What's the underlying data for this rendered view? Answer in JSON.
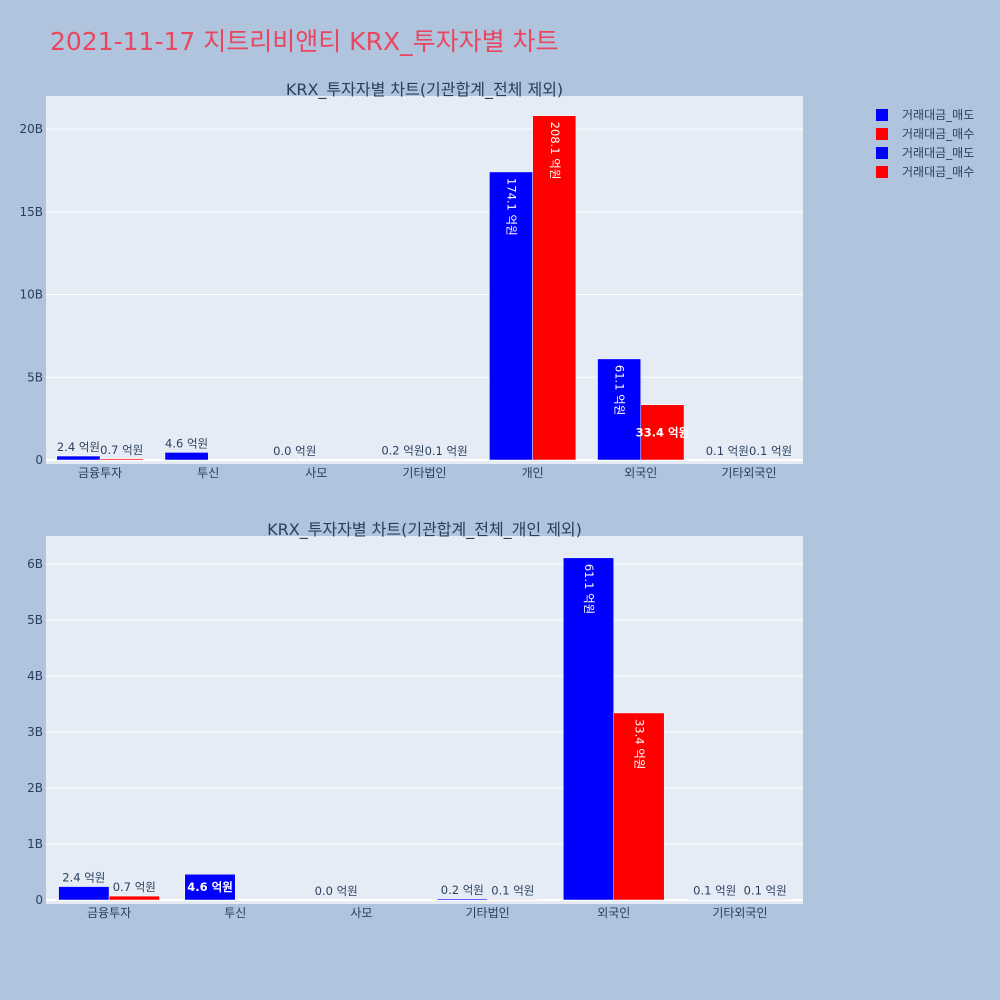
{
  "page": {
    "title": "2021-11-17 지트리비앤티 KRX_투자자별 차트"
  },
  "colors": {
    "sell": "#0000ff",
    "buy": "#ff0000",
    "plot_bg": "#e5ecf6",
    "page_bg": "#b0c4de",
    "title": "#e8475f"
  },
  "legend": {
    "placement": "top-right",
    "entries": [
      {
        "name": "거래대금_매도",
        "color": "#0000ff"
      },
      {
        "name": "거래대금_매수",
        "color": "#ff0000"
      },
      {
        "name": "거래대금_매도",
        "color": "#0000ff"
      },
      {
        "name": "거래대금_매수",
        "color": "#ff0000"
      }
    ]
  },
  "chart_data": [
    {
      "type": "bar",
      "title": "KRX_투자자별 차트(기관합계_전체 제외)",
      "categories": [
        "금융투자",
        "투신",
        "사모",
        "기타법인",
        "개인",
        "외국인",
        "기타외국인"
      ],
      "ylim": [
        0,
        22000000000
      ],
      "yticks": [
        0,
        5000000000,
        10000000000,
        15000000000,
        20000000000
      ],
      "ytick_labels": [
        "0",
        "5B",
        "10B",
        "15B",
        "20B"
      ],
      "grid": true,
      "series": [
        {
          "name": "거래대금_매도",
          "color": "#0000ff",
          "values": [
            240000000,
            460000000,
            0,
            20000000,
            17410000000,
            6110000000,
            10000000
          ],
          "labels": [
            "2.4 억원",
            "4.6 억원",
            "0.0 억원",
            "0.2 억원",
            "174.1 억원",
            "61.1 억원",
            "0.1 억원"
          ]
        },
        {
          "name": "거래대금_매수",
          "color": "#ff0000",
          "values": [
            70000000,
            0,
            0,
            10000000,
            20810000000,
            3340000000,
            10000000
          ],
          "labels": [
            "0.7 억원",
            "",
            "",
            "0.1 억원",
            "208.1 억원",
            "33.4 억원",
            "0.1 억원"
          ]
        }
      ]
    },
    {
      "type": "bar",
      "title": "KRX_투자자별 차트(기관합계_전체_개인 제외)",
      "categories": [
        "금융투자",
        "투신",
        "사모",
        "기타법인",
        "외국인",
        "기타외국인"
      ],
      "ylim": [
        0,
        6500000000
      ],
      "yticks": [
        0,
        1000000000,
        2000000000,
        3000000000,
        4000000000,
        5000000000,
        6000000000
      ],
      "ytick_labels": [
        "0",
        "1B",
        "2B",
        "3B",
        "4B",
        "5B",
        "6B"
      ],
      "grid": true,
      "series": [
        {
          "name": "거래대금_매도",
          "color": "#0000ff",
          "values": [
            240000000,
            460000000,
            0,
            20000000,
            6110000000,
            10000000
          ],
          "labels": [
            "2.4 억원",
            "4.6 억원",
            "0.0 억원",
            "0.2 억원",
            "61.1 억원",
            "0.1 억원"
          ]
        },
        {
          "name": "거래대금_매수",
          "color": "#ff0000",
          "values": [
            70000000,
            0,
            0,
            10000000,
            3340000000,
            10000000
          ],
          "labels": [
            "0.7 억원",
            "",
            "",
            "0.1 억원",
            "33.4 억원",
            "0.1 억원"
          ]
        }
      ]
    }
  ]
}
